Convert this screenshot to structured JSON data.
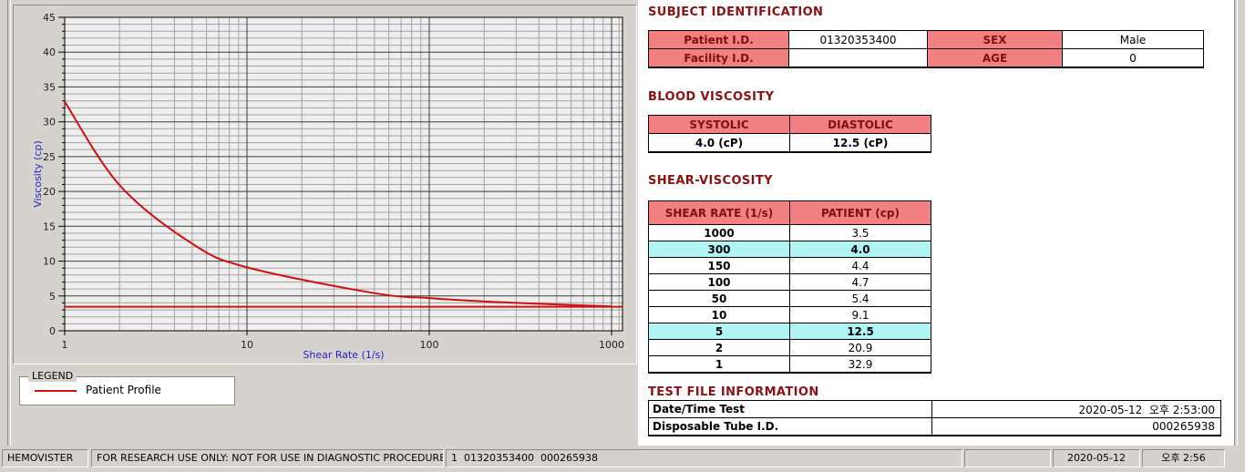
{
  "subject_identification": {
    "title": "SUBJECT IDENTIFICATION",
    "rows": [
      {
        "label1": "Patient I.D.",
        "value1": "01320353400",
        "label2": "SEX",
        "value2": "Male"
      },
      {
        "label1": "Facility I.D.",
        "value1": "",
        "label2": "AGE",
        "value2": "0"
      }
    ]
  },
  "blood_viscosity": {
    "title": "BLOOD VISCOSITY",
    "headers": [
      "SYSTOLIC",
      "DIASTOLIC"
    ],
    "values": [
      "4.0 (cP)",
      "12.5 (cP)"
    ]
  },
  "shear_viscosity": {
    "title": "SHEAR-VISCOSITY",
    "headers": [
      "SHEAR RATE (1/s)",
      "PATIENT (cp)"
    ],
    "highlight_color": "#B0F4F4",
    "rows": [
      {
        "shear_rate": "1000",
        "patient": "3.5",
        "highlighted": false
      },
      {
        "shear_rate": "300",
        "patient": "4.0",
        "highlighted": true
      },
      {
        "shear_rate": "150",
        "patient": "4.4",
        "highlighted": false
      },
      {
        "shear_rate": "100",
        "patient": "4.7",
        "highlighted": false
      },
      {
        "shear_rate": "50",
        "patient": "5.4",
        "highlighted": false
      },
      {
        "shear_rate": "10",
        "patient": "9.1",
        "highlighted": false
      },
      {
        "shear_rate": "5",
        "patient": "12.5",
        "highlighted": true
      },
      {
        "shear_rate": "2",
        "patient": "20.9",
        "highlighted": false
      },
      {
        "shear_rate": "1",
        "patient": "32.9",
        "highlighted": false
      }
    ]
  },
  "test_file_information": {
    "title": "TEST FILE INFORMATION",
    "rows": [
      {
        "label": "Date/Time Test",
        "value": "2020-05-12  오후 2:53:00"
      },
      {
        "label": "Disposable Tube I.D.",
        "value": "000265938"
      }
    ]
  },
  "legend": {
    "title": "LEGEND",
    "entries": [
      {
        "label": "Patient Profile",
        "color": "#CC1111"
      }
    ]
  },
  "chart_data": {
    "type": "line",
    "title": "",
    "xlabel": "Shear Rate (1/s)",
    "ylabel": "Viscosity (cp)",
    "x_scale": "log",
    "xlim": [
      1,
      1150
    ],
    "ylim": [
      0,
      45
    ],
    "x_ticks": [
      1,
      10,
      100,
      1000
    ],
    "y_ticks": [
      0,
      5,
      10,
      15,
      20,
      25,
      30,
      35,
      40,
      45
    ],
    "y_minor_step": 1,
    "grid": true,
    "axis_label_color": "#2222CC",
    "legend_position": "below-left",
    "series": [
      {
        "name": "Patient Profile",
        "color": "#CC1111",
        "x": [
          1,
          2,
          5,
          10,
          50,
          100,
          150,
          300,
          1000
        ],
        "y": [
          32.9,
          20.9,
          12.5,
          9.1,
          5.4,
          4.7,
          4.4,
          4.0,
          3.5
        ]
      }
    ],
    "horizontal_line": {
      "y": 3.45,
      "color": "#CC1111"
    }
  },
  "status_bar": {
    "app_name": "HEMOVISTER",
    "research_notice": "FOR RESEARCH USE ONLY: NOT FOR USE IN DIAGNOSTIC PROCEDURES",
    "file_info": "1  01320353400  000265938",
    "empty_panel": "",
    "date": "2020-05-12",
    "time": "오후 2:56"
  },
  "colors": {
    "window_bg": "#D6D3CE",
    "panel_bg": "#FFFFFF",
    "table_header_bg": "#F38080",
    "section_title": "#8B1212",
    "highlight": "#B0F4F4",
    "curve": "#CC1111",
    "axis_label": "#2222CC"
  }
}
